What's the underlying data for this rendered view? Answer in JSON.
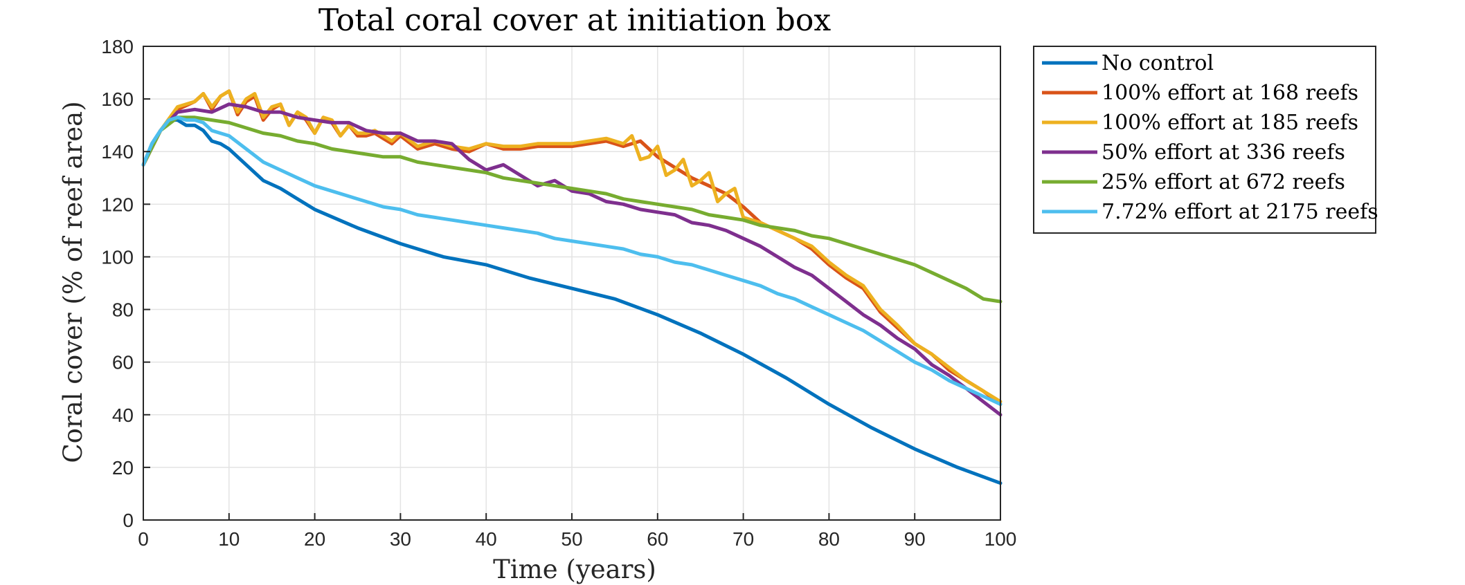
{
  "chart_data": {
    "type": "line",
    "title": "Total coral cover at initiation box",
    "xlabel": "Time (years)",
    "ylabel": "Coral cover (% of reef area)",
    "xlim": [
      0,
      100
    ],
    "ylim": [
      0,
      180
    ],
    "xticks": [
      0,
      10,
      20,
      30,
      40,
      50,
      60,
      70,
      80,
      90,
      100
    ],
    "yticks": [
      0,
      20,
      40,
      60,
      80,
      100,
      120,
      140,
      160,
      180
    ],
    "grid": true,
    "legend_position": "outside-top-right",
    "series": [
      {
        "name": "No control",
        "color": "#0072BD",
        "x": [
          0,
          1,
          2,
          3,
          4,
          5,
          6,
          7,
          8,
          9,
          10,
          12,
          14,
          16,
          18,
          20,
          25,
          30,
          35,
          40,
          45,
          50,
          55,
          60,
          65,
          70,
          75,
          80,
          85,
          90,
          95,
          100
        ],
        "y": [
          135,
          143,
          148,
          152,
          152,
          150,
          150,
          148,
          144,
          143,
          141,
          135,
          129,
          126,
          122,
          118,
          111,
          105,
          100,
          97,
          92,
          88,
          84,
          78,
          71,
          63,
          54,
          44,
          35,
          27,
          20,
          14
        ]
      },
      {
        "name": "100% effort at 168 reefs",
        "color": "#D95319",
        "x": [
          0,
          2,
          4,
          6,
          7,
          8,
          9,
          10,
          11,
          12,
          13,
          14,
          15,
          16,
          17,
          18,
          19,
          20,
          21,
          22,
          23,
          24,
          25,
          26,
          27,
          28,
          29,
          30,
          32,
          34,
          36,
          38,
          40,
          42,
          44,
          46,
          48,
          50,
          52,
          54,
          56,
          58,
          60,
          62,
          64,
          66,
          68,
          70,
          72,
          74,
          76,
          78,
          80,
          82,
          84,
          86,
          88,
          90,
          92,
          94,
          96,
          98,
          100
        ],
        "y": [
          135,
          148,
          156,
          159,
          162,
          156,
          161,
          163,
          154,
          159,
          161,
          152,
          156,
          158,
          150,
          155,
          152,
          147,
          153,
          151,
          146,
          150,
          146,
          146,
          147,
          145,
          143,
          146,
          141,
          143,
          141,
          140,
          143,
          141,
          141,
          142,
          142,
          142,
          143,
          144,
          142,
          144,
          138,
          134,
          130,
          127,
          124,
          119,
          113,
          110,
          107,
          103,
          97,
          92,
          88,
          79,
          73,
          67,
          63,
          57,
          53,
          49,
          44
        ]
      },
      {
        "name": "100% effort at 185 reefs",
        "color": "#EDB120",
        "x": [
          0,
          2,
          4,
          6,
          7,
          8,
          9,
          10,
          11,
          12,
          13,
          14,
          15,
          16,
          17,
          18,
          19,
          20,
          21,
          22,
          23,
          24,
          25,
          26,
          27,
          28,
          29,
          30,
          32,
          34,
          36,
          38,
          40,
          42,
          44,
          46,
          48,
          50,
          52,
          54,
          56,
          57,
          58,
          59,
          60,
          61,
          62,
          63,
          64,
          65,
          66,
          67,
          68,
          69,
          70,
          72,
          74,
          76,
          78,
          80,
          82,
          84,
          86,
          88,
          90,
          92,
          94,
          96,
          98,
          100
        ],
        "y": [
          135,
          148,
          157,
          159,
          162,
          157,
          161,
          163,
          155,
          160,
          162,
          153,
          157,
          158,
          150,
          155,
          153,
          147,
          153,
          152,
          146,
          150,
          147,
          147,
          148,
          146,
          144,
          147,
          142,
          144,
          142,
          141,
          143,
          142,
          142,
          143,
          143,
          143,
          144,
          145,
          143,
          146,
          137,
          138,
          142,
          131,
          133,
          137,
          127,
          129,
          132,
          121,
          124,
          126,
          115,
          113,
          110,
          107,
          104,
          98,
          93,
          89,
          80,
          74,
          67,
          63,
          58,
          53,
          49,
          45
        ]
      },
      {
        "name": "50% effort at 336 reefs",
        "color": "#7E2F8E",
        "x": [
          0,
          2,
          4,
          6,
          8,
          10,
          12,
          14,
          16,
          18,
          20,
          22,
          24,
          26,
          28,
          30,
          32,
          34,
          36,
          38,
          40,
          42,
          44,
          46,
          48,
          50,
          52,
          54,
          56,
          58,
          60,
          62,
          64,
          66,
          68,
          70,
          72,
          74,
          76,
          78,
          80,
          82,
          84,
          86,
          88,
          90,
          92,
          94,
          96,
          98,
          100
        ],
        "y": [
          135,
          148,
          155,
          156,
          155,
          158,
          157,
          155,
          155,
          153,
          152,
          151,
          151,
          148,
          147,
          147,
          144,
          144,
          143,
          137,
          133,
          135,
          131,
          127,
          129,
          125,
          124,
          121,
          120,
          118,
          117,
          116,
          113,
          112,
          110,
          107,
          104,
          100,
          96,
          93,
          88,
          83,
          78,
          74,
          69,
          65,
          59,
          55,
          50,
          45,
          40
        ]
      },
      {
        "name": "25% effort at 672 reefs",
        "color": "#77AC30",
        "x": [
          0,
          2,
          4,
          6,
          8,
          10,
          12,
          14,
          16,
          18,
          20,
          22,
          24,
          26,
          28,
          30,
          32,
          34,
          36,
          38,
          40,
          42,
          44,
          46,
          48,
          50,
          52,
          54,
          56,
          58,
          60,
          62,
          64,
          66,
          68,
          70,
          72,
          74,
          76,
          78,
          80,
          82,
          84,
          86,
          88,
          90,
          92,
          94,
          96,
          98,
          100
        ],
        "y": [
          135,
          148,
          153,
          153,
          152,
          151,
          149,
          147,
          146,
          144,
          143,
          141,
          140,
          139,
          138,
          138,
          136,
          135,
          134,
          133,
          132,
          130,
          129,
          128,
          127,
          126,
          125,
          124,
          122,
          121,
          120,
          119,
          118,
          116,
          115,
          114,
          112,
          111,
          110,
          108,
          107,
          105,
          103,
          101,
          99,
          97,
          94,
          91,
          88,
          84,
          83
        ]
      },
      {
        "name": "7.72% effort at 2175 reefs",
        "color": "#4DBEEE",
        "x": [
          0,
          1,
          2,
          3,
          4,
          5,
          6,
          7,
          8,
          9,
          10,
          12,
          14,
          16,
          18,
          20,
          22,
          24,
          26,
          28,
          30,
          32,
          34,
          36,
          38,
          40,
          42,
          44,
          46,
          48,
          50,
          52,
          54,
          56,
          58,
          60,
          62,
          64,
          66,
          68,
          70,
          72,
          74,
          76,
          78,
          80,
          82,
          84,
          86,
          88,
          90,
          92,
          94,
          96,
          98,
          100
        ],
        "y": [
          135,
          143,
          148,
          152,
          153,
          152,
          152,
          151,
          148,
          147,
          146,
          141,
          136,
          133,
          130,
          127,
          125,
          123,
          121,
          119,
          118,
          116,
          115,
          114,
          113,
          112,
          111,
          110,
          109,
          107,
          106,
          105,
          104,
          103,
          101,
          100,
          98,
          97,
          95,
          93,
          91,
          89,
          86,
          84,
          81,
          78,
          75,
          72,
          68,
          64,
          60,
          57,
          53,
          50,
          47,
          44
        ]
      }
    ]
  }
}
